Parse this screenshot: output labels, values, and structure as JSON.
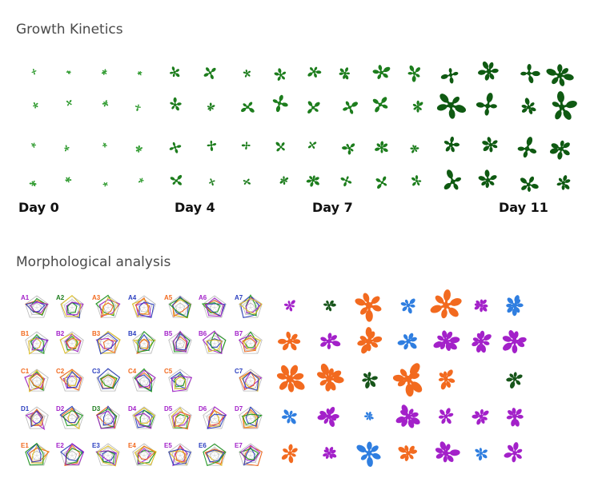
{
  "titles": {
    "growth": "Growth Kinetics",
    "morph": "Morphological analysis"
  },
  "days": [
    "Day 0",
    "Day 4",
    "Day 7",
    "Day 11"
  ],
  "colors": {
    "plant_light": "#2e9a2e",
    "plant_mid": "#1d7d1d",
    "plant_dark": "#0f5a12",
    "orange": "#f26a1f",
    "purple": "#a321c9",
    "blue": "#2f7ee0",
    "darkgreen": "#17551a"
  },
  "radar": {
    "rows": [
      "A",
      "B",
      "C",
      "D",
      "E"
    ],
    "labels": [
      [
        {
          "t": "A1",
          "c": "#a321c9"
        },
        {
          "t": "A2",
          "c": "#1d7d1d"
        },
        {
          "t": "A3",
          "c": "#f26a1f"
        },
        {
          "t": "A4",
          "c": "#2b3fc0"
        },
        {
          "t": "A5",
          "c": "#f26a1f"
        },
        {
          "t": "A6",
          "c": "#a321c9"
        },
        {
          "t": "A7",
          "c": "#2b3fc0"
        }
      ],
      [
        {
          "t": "B1",
          "c": "#f26a1f"
        },
        {
          "t": "B2",
          "c": "#a321c9"
        },
        {
          "t": "B3",
          "c": "#f26a1f"
        },
        {
          "t": "B4",
          "c": "#2b3fc0"
        },
        {
          "t": "B5",
          "c": "#a321c9"
        },
        {
          "t": "B6",
          "c": "#a321c9"
        },
        {
          "t": "B7",
          "c": "#a321c9"
        }
      ],
      [
        {
          "t": "C1",
          "c": "#f26a1f"
        },
        {
          "t": "C2",
          "c": "#f26a1f"
        },
        {
          "t": "C3",
          "c": "#2b3fc0"
        },
        {
          "t": "C4",
          "c": "#f26a1f"
        },
        {
          "t": "C5",
          "c": "#f26a1f"
        },
        {
          "t": "",
          "c": "#000"
        },
        {
          "t": "C7",
          "c": "#2b3fc0"
        }
      ],
      [
        {
          "t": "D1",
          "c": "#2b3fc0"
        },
        {
          "t": "D2",
          "c": "#a321c9"
        },
        {
          "t": "D3",
          "c": "#1d7d1d"
        },
        {
          "t": "D4",
          "c": "#a321c9"
        },
        {
          "t": "D5",
          "c": "#a321c9"
        },
        {
          "t": "D6",
          "c": "#a321c9"
        },
        {
          "t": "D7",
          "c": "#a321c9"
        }
      ],
      [
        {
          "t": "E1",
          "c": "#f26a1f"
        },
        {
          "t": "E2",
          "c": "#a321c9"
        },
        {
          "t": "E3",
          "c": "#2b3fc0"
        },
        {
          "t": "E4",
          "c": "#f26a1f"
        },
        {
          "t": "E5",
          "c": "#a321c9"
        },
        {
          "t": "E6",
          "c": "#2b3fc0"
        },
        {
          "t": "E7",
          "c": "#a321c9"
        }
      ]
    ]
  },
  "rosette_colors": [
    [
      "purple",
      "darkgreen",
      "orange",
      "blue",
      "orange",
      "purple",
      "blue"
    ],
    [
      "orange",
      "purple",
      "orange",
      "blue",
      "purple",
      "purple",
      "purple"
    ],
    [
      "orange",
      "orange",
      "darkgreen",
      "orange",
      "orange",
      "",
      "darkgreen"
    ],
    [
      "blue",
      "purple",
      "blue",
      "purple",
      "purple",
      "purple",
      "purple"
    ],
    [
      "orange",
      "purple",
      "blue",
      "orange",
      "purple",
      "blue",
      "purple"
    ]
  ]
}
